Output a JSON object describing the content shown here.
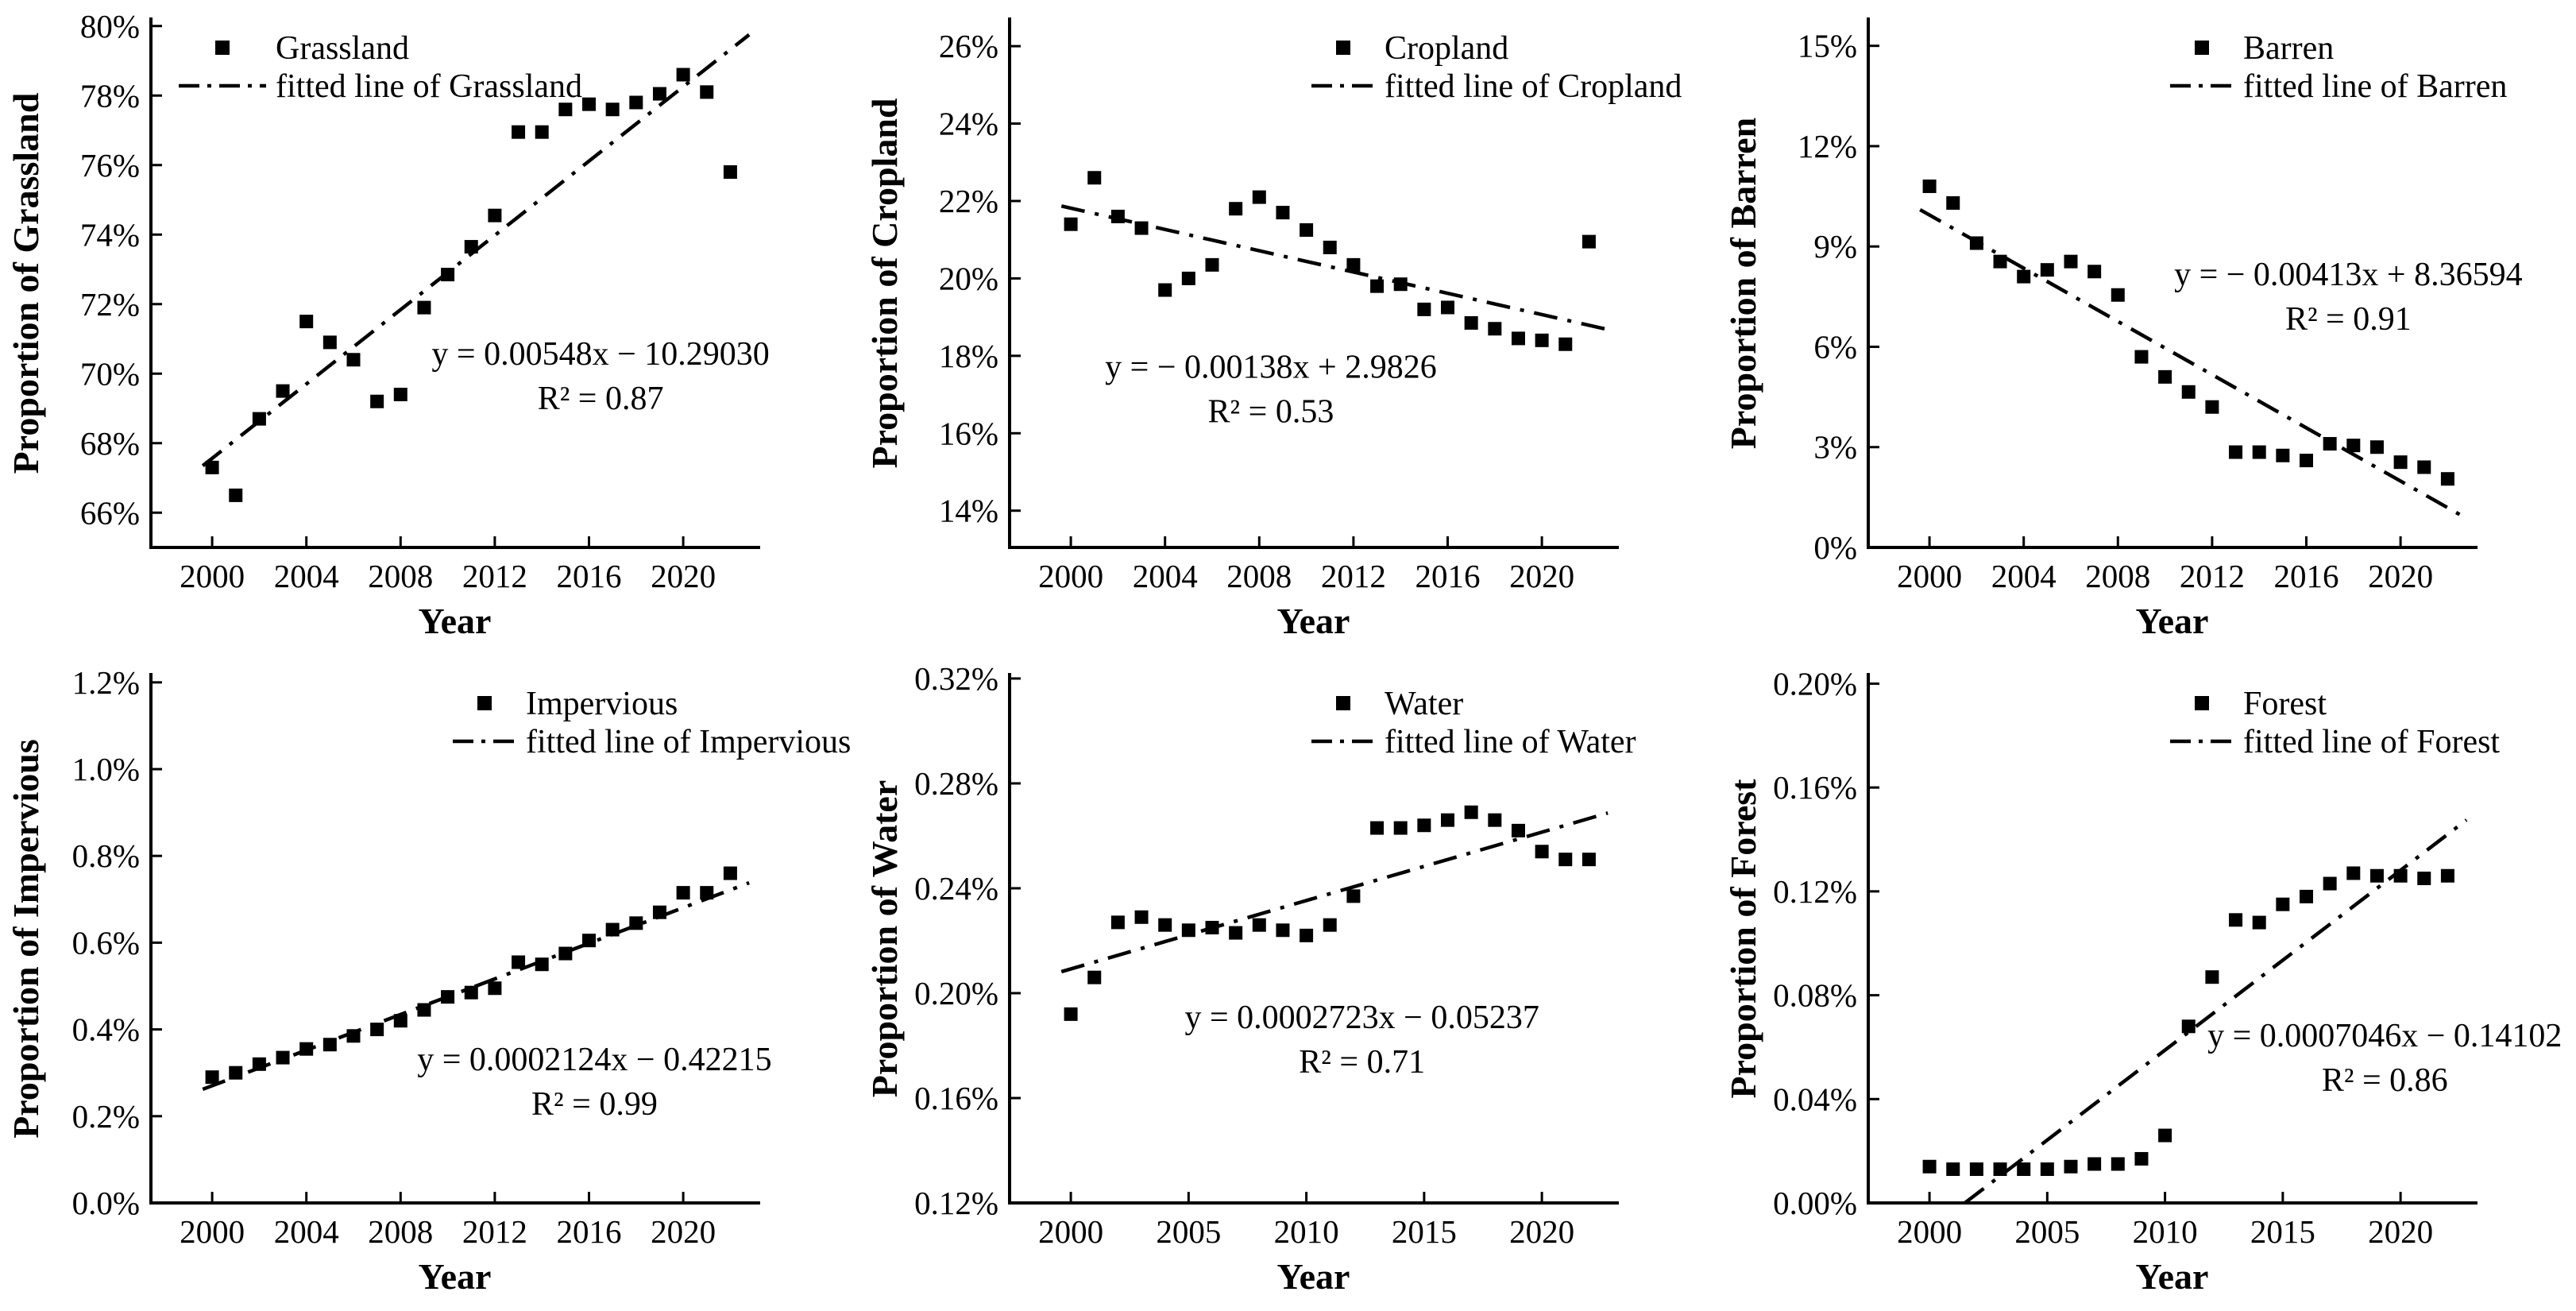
{
  "figure": {
    "background": "#ffffff",
    "ink_color": "#000000",
    "xlabel": "Year"
  },
  "chart_data": [
    {
      "name": "grassland",
      "type": "scatter",
      "ylabel": "Proportion of Grassland",
      "xlabel": "Year",
      "legend": {
        "position": "upper-left",
        "marker_label": "Grassland",
        "line_label": "fitted line of Grassland"
      },
      "equation": "y = 0.00548x − 10.29030",
      "r2": "R² = 0.87",
      "eq_center": [
        0.74,
        0.675
      ],
      "xlim": [
        1997.4,
        2023.2
      ],
      "ylim": [
        65.0,
        80.2
      ],
      "x_ticks": [
        2000,
        2004,
        2008,
        2012,
        2016,
        2020
      ],
      "x_tick_labels": [
        "2000",
        "2004",
        "2008",
        "2012",
        "2016",
        "2020"
      ],
      "y_ticks": [
        66,
        68,
        70,
        72,
        74,
        76,
        78,
        80
      ],
      "y_tick_labels": [
        "66%",
        "68%",
        "70%",
        "72%",
        "74%",
        "76%",
        "78%",
        "80%"
      ],
      "x": [
        2000,
        2001,
        2002,
        2003,
        2004,
        2005,
        2006,
        2007,
        2008,
        2009,
        2010,
        2011,
        2012,
        2013,
        2014,
        2015,
        2016,
        2017,
        2018,
        2019,
        2020,
        2021,
        2022
      ],
      "y": [
        67.3,
        66.5,
        68.7,
        69.5,
        71.5,
        70.9,
        70.4,
        69.2,
        69.4,
        71.9,
        72.85,
        73.65,
        74.55,
        76.95,
        76.95,
        77.6,
        77.75,
        77.6,
        77.8,
        78.05,
        78.6,
        78.1,
        75.8
      ],
      "fit_line": {
        "x": [
          1999.6,
          2022.8
        ],
        "y": [
          67.35,
          79.75
        ]
      }
    },
    {
      "name": "cropland",
      "type": "scatter",
      "ylabel": "Proportion of Cropland",
      "xlabel": "Year",
      "legend": {
        "position": "upper-right",
        "marker_label": "Cropland",
        "line_label": "fitted line of Cropland"
      },
      "equation": "y = − 0.00138x + 2.9826",
      "r2": "R² = 0.53",
      "eq_center": [
        0.43,
        0.7
      ],
      "xlim": [
        1997.4,
        2023.2
      ],
      "ylim": [
        13.05,
        26.7
      ],
      "x_ticks": [
        2000,
        2004,
        2008,
        2012,
        2016,
        2020
      ],
      "x_tick_labels": [
        "2000",
        "2004",
        "2008",
        "2012",
        "2016",
        "2020"
      ],
      "y_ticks": [
        14,
        16,
        18,
        20,
        22,
        24,
        26
      ],
      "y_tick_labels": [
        "14%",
        "16%",
        "18%",
        "20%",
        "22%",
        "24%",
        "26%"
      ],
      "x": [
        2000,
        2001,
        2002,
        2003,
        2004,
        2005,
        2006,
        2007,
        2008,
        2009,
        2010,
        2011,
        2012,
        2013,
        2014,
        2015,
        2016,
        2017,
        2018,
        2019,
        2020,
        2021,
        2022
      ],
      "y": [
        21.4,
        22.6,
        21.6,
        21.3,
        19.7,
        20.0,
        20.35,
        21.8,
        22.1,
        21.7,
        21.25,
        20.8,
        20.35,
        19.8,
        19.85,
        19.2,
        19.25,
        18.85,
        18.7,
        18.45,
        18.4,
        18.3,
        20.95
      ],
      "fit_line": {
        "x": [
          1999.6,
          2022.8
        ],
        "y": [
          21.87,
          18.68
        ]
      }
    },
    {
      "name": "barren",
      "type": "scatter",
      "ylabel": "Proportion of Barren",
      "xlabel": "Year",
      "legend": {
        "position": "upper-right",
        "marker_label": "Barren",
        "line_label": "fitted line of Barren"
      },
      "equation": "y = − 0.00413x + 8.36594",
      "r2": "R² = 0.91",
      "eq_center": [
        0.79,
        0.525
      ],
      "xlim": [
        1997.4,
        2023.2
      ],
      "ylim": [
        0,
        15.8
      ],
      "x_ticks": [
        2000,
        2004,
        2008,
        2012,
        2016,
        2020
      ],
      "x_tick_labels": [
        "2000",
        "2004",
        "2008",
        "2012",
        "2016",
        "2020"
      ],
      "y_ticks": [
        0,
        3,
        6,
        9,
        12,
        15
      ],
      "y_tick_labels": [
        "0%",
        "3%",
        "6%",
        "9%",
        "12%",
        "15%"
      ],
      "x": [
        2000,
        2001,
        2002,
        2003,
        2004,
        2005,
        2006,
        2007,
        2008,
        2009,
        2010,
        2011,
        2012,
        2013,
        2014,
        2015,
        2016,
        2017,
        2018,
        2019,
        2020,
        2021,
        2022
      ],
      "y": [
        10.8,
        10.3,
        9.1,
        8.55,
        8.1,
        8.3,
        8.55,
        8.25,
        7.55,
        5.7,
        5.1,
        4.65,
        4.2,
        2.85,
        2.85,
        2.75,
        2.6,
        3.1,
        3.05,
        3.0,
        2.55,
        2.4,
        2.05
      ],
      "fit_line": {
        "x": [
          1999.6,
          2022.6
        ],
        "y": [
          10.1,
          0.95
        ]
      }
    },
    {
      "name": "impervious",
      "type": "scatter",
      "ylabel": "Proportion of Impervious",
      "xlabel": "Year",
      "legend": {
        "position": "upper-right",
        "marker_label": "Impervious",
        "line_label": "fitted line of Impervious"
      },
      "equation": "y = 0.0002124x − 0.42215",
      "r2": "R² = 0.99",
      "eq_center": [
        0.73,
        0.77
      ],
      "xlim": [
        1997.4,
        2023.2
      ],
      "ylim": [
        0,
        1.218
      ],
      "x_ticks": [
        2000,
        2004,
        2008,
        2012,
        2016,
        2020
      ],
      "x_tick_labels": [
        "2000",
        "2004",
        "2008",
        "2012",
        "2016",
        "2020"
      ],
      "y_ticks": [
        0.0,
        0.2,
        0.4,
        0.6,
        0.8,
        1.0,
        1.2
      ],
      "y_tick_labels": [
        "0.0%",
        "0.2%",
        "0.4%",
        "0.6%",
        "0.8%",
        "1.0%",
        "1.2%"
      ],
      "x": [
        2000,
        2001,
        2002,
        2003,
        2004,
        2005,
        2006,
        2007,
        2008,
        2009,
        2010,
        2011,
        2012,
        2013,
        2014,
        2015,
        2016,
        2017,
        2018,
        2019,
        2020,
        2021,
        2022
      ],
      "y": [
        0.29,
        0.3,
        0.32,
        0.335,
        0.355,
        0.365,
        0.385,
        0.4,
        0.42,
        0.445,
        0.475,
        0.485,
        0.495,
        0.555,
        0.55,
        0.575,
        0.605,
        0.63,
        0.645,
        0.67,
        0.715,
        0.715,
        0.76
      ],
      "fit_line": {
        "x": [
          1999.6,
          2022.8
        ],
        "y": [
          0.262,
          0.738
        ]
      }
    },
    {
      "name": "water",
      "type": "scatter",
      "ylabel": "Proportion of Water",
      "xlabel": "Year",
      "legend": {
        "position": "upper-right",
        "marker_label": "Water",
        "line_label": "fitted line of Water"
      },
      "equation": "y = 0.0002723x − 0.05237",
      "r2": "R² = 0.71",
      "eq_center": [
        0.58,
        0.69
      ],
      "xlim": [
        1997.4,
        2023.2
      ],
      "ylim": [
        0.12,
        0.3215
      ],
      "x_ticks": [
        2000,
        2005,
        2010,
        2015,
        2020
      ],
      "x_tick_labels": [
        "2000",
        "2005",
        "2010",
        "2015",
        "2020"
      ],
      "y_ticks": [
        0.12,
        0.16,
        0.2,
        0.24,
        0.28,
        0.32
      ],
      "y_tick_labels": [
        "0.12%",
        "0.16%",
        "0.20%",
        "0.24%",
        "0.28%",
        "0.32%"
      ],
      "x": [
        2000,
        2001,
        2002,
        2003,
        2004,
        2005,
        2006,
        2007,
        2008,
        2009,
        2010,
        2011,
        2012,
        2013,
        2014,
        2015,
        2016,
        2017,
        2018,
        2019,
        2020,
        2021,
        2022
      ],
      "y": [
        0.192,
        0.206,
        0.227,
        0.229,
        0.226,
        0.224,
        0.225,
        0.223,
        0.226,
        0.224,
        0.222,
        0.226,
        0.237,
        0.263,
        0.263,
        0.264,
        0.266,
        0.269,
        0.266,
        0.262,
        0.254,
        0.251,
        0.251
      ],
      "fit_line": {
        "x": [
          1999.6,
          2022.8
        ],
        "y": [
          0.2082,
          0.2687
        ]
      }
    },
    {
      "name": "forest",
      "type": "scatter",
      "ylabel": "Proportion of Forest",
      "xlabel": "Year",
      "legend": {
        "position": "upper-right",
        "marker_label": "Forest",
        "line_label": "fitted line of Forest"
      },
      "equation": "y = 0.0007046x − 0.14102",
      "r2": "R² = 0.86",
      "eq_center": [
        0.85,
        0.725
      ],
      "xlim": [
        1997.4,
        2023.2
      ],
      "ylim": [
        0,
        0.2035
      ],
      "x_ticks": [
        2000,
        2005,
        2010,
        2015,
        2020
      ],
      "x_tick_labels": [
        "2000",
        "2005",
        "2010",
        "2015",
        "2020"
      ],
      "y_ticks": [
        0.0,
        0.04,
        0.08,
        0.12,
        0.16,
        0.2
      ],
      "y_tick_labels": [
        "0.00%",
        "0.04%",
        "0.08%",
        "0.12%",
        "0.16%",
        "0.20%"
      ],
      "x": [
        2000,
        2001,
        2002,
        2003,
        2004,
        2005,
        2006,
        2007,
        2008,
        2009,
        2010,
        2011,
        2012,
        2013,
        2014,
        2015,
        2016,
        2017,
        2018,
        2019,
        2020,
        2021,
        2022
      ],
      "y": [
        0.014,
        0.013,
        0.013,
        0.013,
        0.013,
        0.013,
        0.014,
        0.015,
        0.015,
        0.017,
        0.026,
        0.068,
        0.087,
        0.109,
        0.108,
        0.115,
        0.118,
        0.123,
        0.127,
        0.126,
        0.126,
        0.125,
        0.126
      ],
      "fit_line": {
        "x": [
          2001.5,
          2022.8
        ],
        "y": [
          0.0,
          0.1475
        ]
      }
    }
  ]
}
